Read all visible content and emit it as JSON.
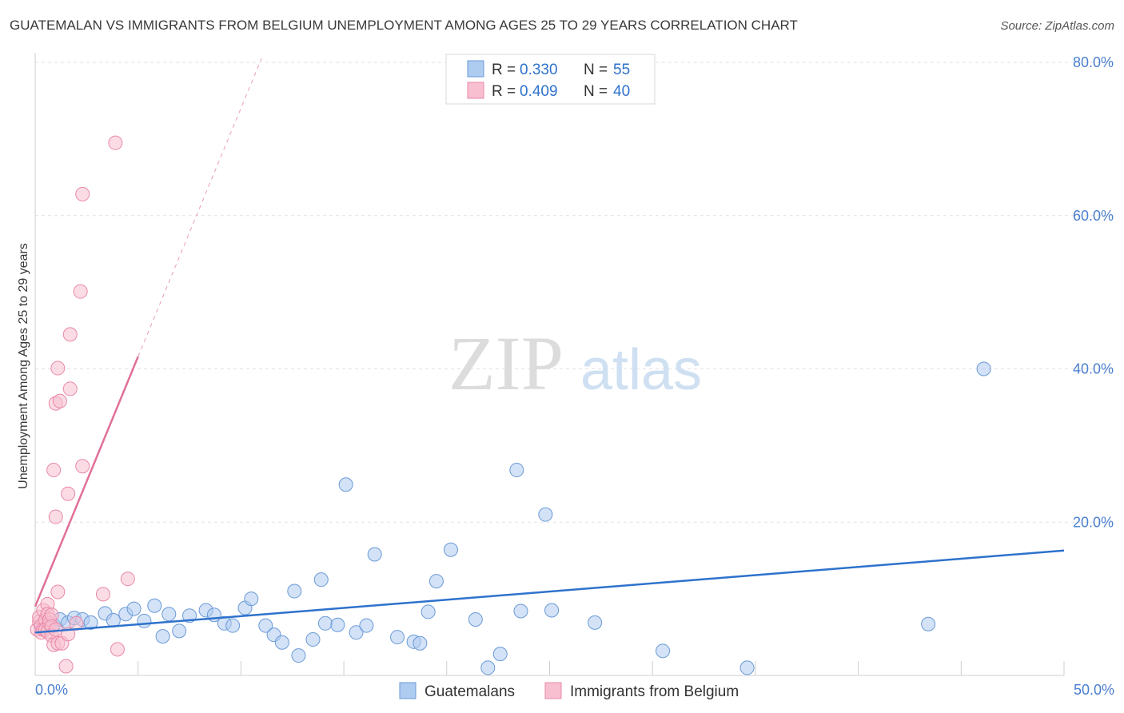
{
  "header": {
    "title": "GUATEMALAN VS IMMIGRANTS FROM BELGIUM UNEMPLOYMENT AMONG AGES 25 TO 29 YEARS CORRELATION CHART",
    "source": "Source: ZipAtlas.com"
  },
  "watermark": {
    "zip": "ZIP",
    "atlas": "atlas"
  },
  "colors": {
    "blue_fill": "#aecbf0",
    "blue_stroke": "#6a9ad6",
    "blue_line": "#2e72cc",
    "pink_fill": "#f7bfd0",
    "pink_stroke": "#e889a8",
    "pink_line": "#e0709a",
    "tick_blue": "#4a7fcf"
  },
  "legend_top": [
    {
      "r_label": "R = ",
      "r_value": "0.330",
      "n_label": "N = ",
      "n_value": "55",
      "series": "Guatemalans"
    },
    {
      "r_label": "R = ",
      "r_value": "0.409",
      "n_label": "N = ",
      "n_value": "40",
      "series": "Immigrants from Belgium"
    }
  ],
  "chart_data": {
    "type": "scatter",
    "title": "GUATEMALAN VS IMMIGRANTS FROM BELGIUM UNEMPLOYMENT AMONG AGES 25 TO 29 YEARS CORRELATION CHART",
    "xlabel": "",
    "ylabel": "Unemployment Among Ages 25 to 29 years",
    "xlim": [
      0,
      50
    ],
    "ylim": [
      0,
      80
    ],
    "x_tick_labels": [
      "0.0%",
      "50.0%"
    ],
    "y_ticks": [
      20,
      40,
      60,
      80
    ],
    "y_tick_labels": [
      "20.0%",
      "40.0%",
      "60.0%",
      "80.0%"
    ],
    "grid": true,
    "legend_position": "bottom",
    "legend": [
      "Guatemalans",
      "Immigrants from Belgium"
    ],
    "series": [
      {
        "name": "Guatemalans",
        "r": 0.33,
        "n": 55,
        "trend": {
          "x": [
            0,
            50
          ],
          "y": [
            5.6,
            16.3
          ],
          "dashed_extension": false
        },
        "points": [
          [
            0.3,
            6.3
          ],
          [
            0.6,
            6.8
          ],
          [
            0.9,
            6.6
          ],
          [
            1.2,
            7.3
          ],
          [
            1.6,
            6.9
          ],
          [
            1.9,
            7.5
          ],
          [
            2.3,
            7.3
          ],
          [
            2.7,
            6.9
          ],
          [
            3.4,
            8.1
          ],
          [
            3.8,
            7.2
          ],
          [
            4.4,
            8.0
          ],
          [
            4.8,
            8.7
          ],
          [
            5.3,
            7.1
          ],
          [
            5.8,
            9.1
          ],
          [
            6.2,
            5.1
          ],
          [
            6.5,
            8.0
          ],
          [
            7.0,
            5.8
          ],
          [
            7.5,
            7.8
          ],
          [
            8.3,
            8.5
          ],
          [
            8.7,
            7.9
          ],
          [
            9.2,
            6.8
          ],
          [
            9.6,
            6.5
          ],
          [
            10.2,
            8.8
          ],
          [
            10.5,
            10.0
          ],
          [
            11.2,
            6.5
          ],
          [
            11.6,
            5.3
          ],
          [
            12.0,
            4.3
          ],
          [
            12.6,
            11.0
          ],
          [
            12.8,
            2.6
          ],
          [
            13.5,
            4.7
          ],
          [
            13.9,
            12.5
          ],
          [
            14.1,
            6.8
          ],
          [
            14.7,
            6.6
          ],
          [
            15.1,
            24.9
          ],
          [
            15.6,
            5.6
          ],
          [
            16.1,
            6.5
          ],
          [
            16.5,
            15.8
          ],
          [
            17.6,
            5.0
          ],
          [
            18.4,
            4.4
          ],
          [
            18.7,
            4.2
          ],
          [
            19.1,
            8.3
          ],
          [
            19.5,
            12.3
          ],
          [
            20.2,
            16.4
          ],
          [
            21.4,
            7.3
          ],
          [
            22.0,
            1.0
          ],
          [
            22.6,
            2.8
          ],
          [
            23.4,
            26.8
          ],
          [
            23.6,
            8.4
          ],
          [
            24.8,
            21.0
          ],
          [
            25.1,
            8.5
          ],
          [
            27.2,
            6.9
          ],
          [
            30.5,
            3.2
          ],
          [
            34.6,
            1.0
          ],
          [
            43.4,
            6.7
          ],
          [
            46.1,
            40.0
          ]
        ]
      },
      {
        "name": "Immigrants from Belgium",
        "r": 0.409,
        "n": 40,
        "trend": {
          "x": [
            0,
            5.0
          ],
          "y": [
            9.0,
            41.6
          ],
          "dashed_extension": true,
          "dashed_to": [
            11.0,
            80.5
          ]
        },
        "points": [
          [
            0.1,
            6.0
          ],
          [
            0.2,
            7.0
          ],
          [
            0.2,
            7.6
          ],
          [
            0.3,
            6.5
          ],
          [
            0.3,
            5.6
          ],
          [
            0.4,
            8.5
          ],
          [
            0.4,
            6.0
          ],
          [
            0.5,
            7.2
          ],
          [
            0.5,
            6.0
          ],
          [
            0.6,
            9.3
          ],
          [
            0.6,
            5.7
          ],
          [
            0.6,
            8.0
          ],
          [
            0.7,
            6.8
          ],
          [
            0.7,
            7.3
          ],
          [
            0.8,
            7.9
          ],
          [
            0.8,
            6.4
          ],
          [
            0.8,
            5.2
          ],
          [
            0.9,
            4.0
          ],
          [
            0.9,
            26.8
          ],
          [
            1.0,
            6.0
          ],
          [
            1.0,
            35.5
          ],
          [
            1.0,
            20.7
          ],
          [
            1.1,
            40.1
          ],
          [
            1.1,
            4.2
          ],
          [
            1.1,
            10.9
          ],
          [
            1.2,
            35.8
          ],
          [
            1.3,
            4.2
          ],
          [
            1.5,
            1.2
          ],
          [
            1.6,
            23.7
          ],
          [
            1.6,
            5.4
          ],
          [
            1.7,
            37.4
          ],
          [
            1.7,
            44.5
          ],
          [
            2.0,
            6.8
          ],
          [
            2.2,
            50.1
          ],
          [
            2.3,
            62.8
          ],
          [
            2.3,
            27.3
          ],
          [
            3.3,
            10.6
          ],
          [
            3.9,
            69.5
          ],
          [
            4.0,
            3.4
          ],
          [
            4.5,
            12.6
          ]
        ]
      }
    ]
  }
}
